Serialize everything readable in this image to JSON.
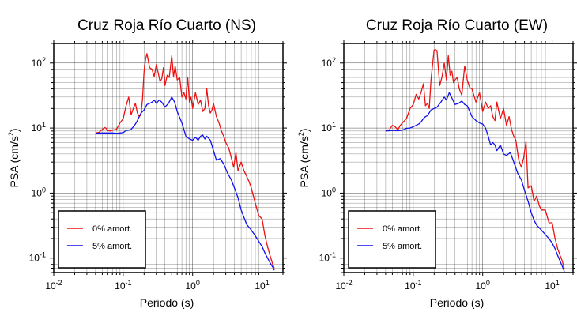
{
  "colors": {
    "series_0": "#ee1111",
    "series_5": "#1111ee",
    "grid": "#000000"
  },
  "chart_data": [
    {
      "type": "line",
      "title": "Cruz Roja Río Cuarto (NS)",
      "xlabel": "Periodo (s)",
      "ylabel_main": "PSA (cm/s",
      "ylabel_sup": "2",
      "ylabel_tail": ")",
      "xscale": "log",
      "yscale": "log",
      "xlim": [
        0.01,
        20
      ],
      "ylim": [
        0.06,
        200
      ],
      "grid": true,
      "legend": "bottom-left",
      "series": [
        {
          "name": "0% amort.",
          "color": "#ee1111",
          "x": [
            0.04,
            0.045,
            0.05,
            0.055,
            0.06,
            0.065,
            0.07,
            0.08,
            0.09,
            0.1,
            0.11,
            0.12,
            0.13,
            0.14,
            0.15,
            0.16,
            0.17,
            0.18,
            0.19,
            0.2,
            0.21,
            0.22,
            0.24,
            0.26,
            0.28,
            0.3,
            0.32,
            0.34,
            0.36,
            0.38,
            0.4,
            0.43,
            0.46,
            0.5,
            0.53,
            0.56,
            0.6,
            0.65,
            0.7,
            0.75,
            0.8,
            0.85,
            0.9,
            0.95,
            1.0,
            1.1,
            1.2,
            1.3,
            1.4,
            1.5,
            1.6,
            1.7,
            1.8,
            1.9,
            2.0,
            2.2,
            2.4,
            2.6,
            2.8,
            3.0,
            3.3,
            3.6,
            3.9,
            4.2,
            4.5,
            5.0,
            5.5,
            6.0,
            6.5,
            7.0,
            7.5,
            8.0,
            8.5,
            9.0,
            10.0,
            11,
            12,
            13,
            14,
            15
          ],
          "values": [
            8.4,
            8.6,
            9.5,
            10.2,
            9.2,
            9.0,
            9.3,
            9.5,
            12,
            14,
            22,
            30,
            16,
            20,
            24,
            17,
            15,
            16,
            28,
            75,
            115,
            140,
            85,
            80,
            62,
            95,
            70,
            52,
            58,
            85,
            45,
            65,
            60,
            130,
            62,
            90,
            55,
            60,
            30,
            35,
            28,
            60,
            25,
            30,
            20,
            35,
            23,
            27,
            18,
            20,
            40,
            22,
            17,
            19,
            24,
            15,
            12,
            9,
            7.5,
            6,
            5,
            3.5,
            2.5,
            4.2,
            2.2,
            3,
            2.2,
            1.8,
            1.5,
            1.2,
            0.9,
            0.7,
            0.55,
            0.45,
            0.4,
            0.22,
            0.15,
            0.11,
            0.085,
            0.07
          ]
        },
        {
          "name": "5% amort.",
          "color": "#1111ee",
          "x": [
            0.04,
            0.05,
            0.06,
            0.07,
            0.08,
            0.09,
            0.1,
            0.11,
            0.12,
            0.13,
            0.14,
            0.15,
            0.16,
            0.18,
            0.2,
            0.22,
            0.24,
            0.26,
            0.28,
            0.3,
            0.33,
            0.36,
            0.4,
            0.45,
            0.5,
            0.55,
            0.6,
            0.7,
            0.8,
            0.9,
            1.0,
            1.1,
            1.2,
            1.3,
            1.4,
            1.5,
            1.6,
            1.8,
            2.0,
            2.2,
            2.5,
            2.8,
            3.2,
            3.6,
            4.0,
            4.5,
            5.0,
            5.5,
            6.0,
            7.0,
            8.0,
            9.0,
            10.0,
            11,
            12,
            13,
            14,
            15
          ],
          "values": [
            8.3,
            8.4,
            8.4,
            8.4,
            8.3,
            8.4,
            8.5,
            9.2,
            9.3,
            9.5,
            10.5,
            11.5,
            13,
            17,
            19,
            23,
            24,
            25,
            27,
            24,
            27,
            25,
            21,
            24,
            30,
            25,
            18,
            12,
            7.5,
            6.8,
            6.5,
            7.2,
            6.5,
            7.5,
            7.8,
            6.8,
            7.5,
            6.5,
            4.5,
            3.2,
            3.4,
            2.8,
            2,
            1.6,
            1.2,
            0.85,
            0.55,
            0.42,
            0.33,
            0.27,
            0.22,
            0.18,
            0.15,
            0.12,
            0.1,
            0.085,
            0.075,
            0.065
          ]
        }
      ]
    },
    {
      "type": "line",
      "title": "Cruz Roja Río Cuarto (EW)",
      "xlabel": "Periodo (s)",
      "ylabel_main": "PSA (cm/s",
      "ylabel_sup": "2",
      "ylabel_tail": ")",
      "xscale": "log",
      "yscale": "log",
      "xlim": [
        0.01,
        20
      ],
      "ylim": [
        0.06,
        200
      ],
      "grid": true,
      "legend": "bottom-left",
      "series": [
        {
          "name": "0% amort.",
          "color": "#ee1111",
          "x": [
            0.04,
            0.045,
            0.05,
            0.055,
            0.06,
            0.065,
            0.07,
            0.08,
            0.09,
            0.1,
            0.11,
            0.12,
            0.13,
            0.14,
            0.15,
            0.16,
            0.17,
            0.18,
            0.19,
            0.2,
            0.21,
            0.22,
            0.24,
            0.26,
            0.28,
            0.3,
            0.32,
            0.34,
            0.36,
            0.38,
            0.4,
            0.43,
            0.46,
            0.5,
            0.55,
            0.6,
            0.65,
            0.7,
            0.8,
            0.9,
            1.0,
            1.1,
            1.2,
            1.3,
            1.4,
            1.5,
            1.6,
            1.8,
            2.0,
            2.2,
            2.4,
            2.6,
            2.8,
            3.0,
            3.3,
            3.6,
            3.9,
            4.2,
            4.5,
            5.0,
            5.5,
            6.0,
            6.5,
            7.0,
            8.0,
            9.0,
            10,
            11,
            12,
            13,
            14,
            15
          ],
          "values": [
            9.2,
            9.3,
            11,
            10.5,
            9.4,
            11,
            12,
            14,
            20,
            23,
            33,
            28,
            36,
            48,
            22,
            24,
            20,
            55,
            95,
            160,
            160,
            155,
            45,
            62,
            100,
            55,
            130,
            65,
            75,
            50,
            55,
            60,
            40,
            32,
            90,
            55,
            42,
            40,
            25,
            35,
            18,
            25,
            20,
            22,
            15,
            13,
            25,
            14,
            20,
            11,
            15,
            9.5,
            7.5,
            6.5,
            3.2,
            2.5,
            3.5,
            6.2,
            1.2,
            1.3,
            0.75,
            0.9,
            0.65,
            0.55,
            0.55,
            0.35,
            0.35,
            0.2,
            0.14,
            0.11,
            0.09,
            0.068
          ]
        },
        {
          "name": "5% amort.",
          "color": "#1111ee",
          "x": [
            0.04,
            0.05,
            0.06,
            0.07,
            0.08,
            0.09,
            0.1,
            0.11,
            0.12,
            0.13,
            0.14,
            0.15,
            0.16,
            0.18,
            0.2,
            0.22,
            0.25,
            0.28,
            0.3,
            0.33,
            0.36,
            0.4,
            0.45,
            0.5,
            0.55,
            0.6,
            0.7,
            0.8,
            0.9,
            1.0,
            1.1,
            1.2,
            1.3,
            1.4,
            1.5,
            1.6,
            1.8,
            2.0,
            2.2,
            2.5,
            2.8,
            3.2,
            3.6,
            4.0,
            4.5,
            5.0,
            5.5,
            6.0,
            7.0,
            8.0,
            9.0,
            10,
            11,
            12,
            13,
            14,
            15
          ],
          "values": [
            9.0,
            9.2,
            9.1,
            9.3,
            9.9,
            10,
            10.5,
            11,
            11.5,
            12.5,
            14,
            15,
            15.5,
            19,
            20,
            21,
            25,
            30,
            27,
            35,
            29,
            23,
            24,
            26,
            23,
            22,
            15,
            13,
            12,
            11.5,
            10,
            7.5,
            5.5,
            6,
            5.5,
            4.5,
            5.5,
            4,
            3.8,
            4.2,
            3,
            2,
            1.6,
            1.1,
            0.75,
            0.5,
            0.38,
            0.32,
            0.27,
            0.23,
            0.2,
            0.17,
            0.14,
            0.11,
            0.09,
            0.075,
            0.062
          ]
        }
      ]
    }
  ]
}
